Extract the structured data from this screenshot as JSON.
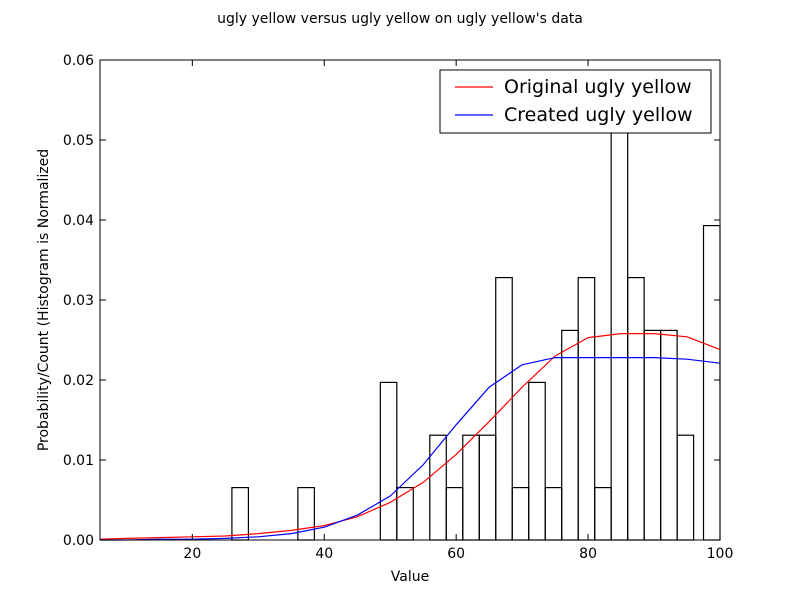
{
  "chart_data": {
    "type": "histogram+line",
    "title": "ugly yellow versus ugly yellow on ugly yellow's data",
    "xlabel": "Value",
    "ylabel": "Probability/Count (Histogram is Normalized",
    "xlim": [
      6,
      100
    ],
    "ylim": [
      0,
      0.06
    ],
    "xticks": [
      20,
      40,
      60,
      80,
      100
    ],
    "yticks": [
      0.0,
      0.01,
      0.02,
      0.03,
      0.04,
      0.05,
      0.06
    ],
    "ytick_labels": [
      "0.00",
      "0.01",
      "0.02",
      "0.03",
      "0.04",
      "0.05",
      "0.06"
    ],
    "grid": false,
    "legend_position": "top-right",
    "histogram": {
      "edgecolor": "#000000",
      "facecolor": "none",
      "bins": [
        {
          "x0": 26.0,
          "x1": 28.5,
          "value": 0.00655
        },
        {
          "x0": 36.0,
          "x1": 38.5,
          "value": 0.00655
        },
        {
          "x0": 48.5,
          "x1": 51.0,
          "value": 0.0197
        },
        {
          "x0": 51.0,
          "x1": 53.5,
          "value": 0.00655
        },
        {
          "x0": 56.0,
          "x1": 58.5,
          "value": 0.0131
        },
        {
          "x0": 58.5,
          "x1": 61.0,
          "value": 0.00655
        },
        {
          "x0": 61.0,
          "x1": 63.5,
          "value": 0.0131
        },
        {
          "x0": 63.5,
          "x1": 66.0,
          "value": 0.0131
        },
        {
          "x0": 66.0,
          "x1": 68.5,
          "value": 0.0328
        },
        {
          "x0": 68.5,
          "x1": 71.0,
          "value": 0.00655
        },
        {
          "x0": 71.0,
          "x1": 73.5,
          "value": 0.0197
        },
        {
          "x0": 73.5,
          "x1": 76.0,
          "value": 0.00655
        },
        {
          "x0": 76.0,
          "x1": 78.5,
          "value": 0.0262
        },
        {
          "x0": 78.5,
          "x1": 81.0,
          "value": 0.0328
        },
        {
          "x0": 81.0,
          "x1": 83.5,
          "value": 0.00655
        },
        {
          "x0": 83.5,
          "x1": 86.0,
          "value": 0.0524
        },
        {
          "x0": 86.0,
          "x1": 88.5,
          "value": 0.0328
        },
        {
          "x0": 88.5,
          "x1": 91.0,
          "value": 0.0262
        },
        {
          "x0": 91.0,
          "x1": 93.5,
          "value": 0.0262
        },
        {
          "x0": 93.5,
          "x1": 96.0,
          "value": 0.0131
        },
        {
          "x0": 97.5,
          "x1": 100.0,
          "value": 0.0393
        }
      ]
    },
    "series": [
      {
        "name": "Original ugly yellow",
        "color": "#ff0000",
        "x": [
          6,
          10,
          15,
          20,
          25,
          30,
          35,
          40,
          45,
          50,
          55,
          60,
          65,
          70,
          75,
          80,
          85,
          90,
          95,
          100
        ],
        "values": [
          0.0001,
          0.0002,
          0.0003,
          0.0004,
          0.0005,
          0.0008,
          0.0012,
          0.0018,
          0.0029,
          0.0047,
          0.0072,
          0.0107,
          0.0148,
          0.0191,
          0.023,
          0.0253,
          0.0258,
          0.0258,
          0.0254,
          0.0238
        ]
      },
      {
        "name": "Created ugly yellow",
        "color": "#0000ff",
        "x": [
          6,
          10,
          15,
          20,
          25,
          30,
          35,
          40,
          45,
          50,
          55,
          60,
          65,
          70,
          75,
          80,
          85,
          90,
          95,
          100
        ],
        "values": [
          0.0,
          0.0,
          0.0001,
          0.0001,
          0.0002,
          0.0004,
          0.0008,
          0.0016,
          0.0031,
          0.0055,
          0.0094,
          0.0144,
          0.0191,
          0.0219,
          0.0228,
          0.0228,
          0.0228,
          0.0228,
          0.0226,
          0.0221
        ]
      }
    ]
  }
}
